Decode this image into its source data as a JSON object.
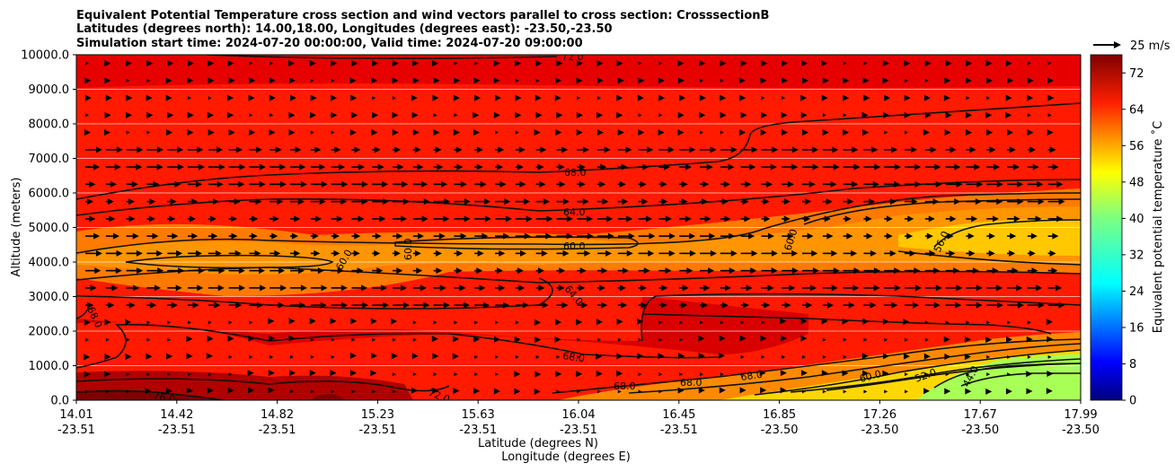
{
  "chart_data": {
    "type": "heatmap",
    "title_lines": [
      "Equivalent Potential Temperature cross section and wind vectors parallel to cross section: CrosssectionB",
      "Latitudes (degrees north): 14.00,18.00, Longitudes (degrees east): -23.50,-23.50",
      "Simulation start time: 2024-07-20 00:00:00, Valid time: 2024-07-20 09:00:00"
    ],
    "ylabel": "Altitude (meters)",
    "xlabel_lines": [
      "Latitude (degrees N)",
      "Longitude (degrees E)"
    ],
    "colorbar_label": "Equivalent potential temperature ˚C",
    "quiver_key_label": "25 m/s",
    "x_ticks": [
      {
        "lat": "14.01",
        "lon": "-23.51"
      },
      {
        "lat": "14.42",
        "lon": "-23.51"
      },
      {
        "lat": "14.82",
        "lon": "-23.51"
      },
      {
        "lat": "15.23",
        "lon": "-23.51"
      },
      {
        "lat": "15.63",
        "lon": "-23.51"
      },
      {
        "lat": "16.04",
        "lon": "-23.51"
      },
      {
        "lat": "16.45",
        "lon": "-23.51"
      },
      {
        "lat": "16.85",
        "lon": "-23.50"
      },
      {
        "lat": "17.26",
        "lon": "-23.50"
      },
      {
        "lat": "17.67",
        "lon": "-23.50"
      },
      {
        "lat": "17.99",
        "lon": "-23.50"
      }
    ],
    "y_ticks": [
      "0.0",
      "1000.0",
      "2000.0",
      "3000.0",
      "4000.0",
      "5000.0",
      "6000.0",
      "7000.0",
      "8000.0",
      "9000.0",
      "10000.0"
    ],
    "ylim": [
      0,
      10000
    ],
    "colorbar_ticks": [
      "0",
      "8",
      "16",
      "24",
      "32",
      "40",
      "48",
      "56",
      "64",
      "72"
    ],
    "colorbar_range": [
      0,
      76
    ],
    "contour_labels": [
      "72.0",
      "68.0",
      "64.0",
      "60.0",
      "60.0",
      "60.0",
      "60.0",
      "64.0",
      "68.0",
      "68.0",
      "68.0",
      "68.0",
      "68.0",
      "60.0",
      "52.0",
      "44.0",
      "56.0",
      "76.0",
      "72.0",
      "68.0"
    ],
    "grid": "horizontal",
    "colormap": "jet",
    "fill_levels": [
      {
        "max_alt": 300,
        "value": 77
      },
      {
        "max_alt": 1000,
        "value": 74
      },
      {
        "max_alt": 2000,
        "value": 71
      },
      {
        "max_alt": 3500,
        "value": 67
      },
      {
        "max_alt": 5000,
        "value": 62
      },
      {
        "max_alt": 6500,
        "value": 65
      },
      {
        "max_alt": 8000,
        "value": 69
      },
      {
        "max_alt": 9500,
        "value": 72
      },
      {
        "max_alt": 10000,
        "value": 75
      }
    ]
  }
}
